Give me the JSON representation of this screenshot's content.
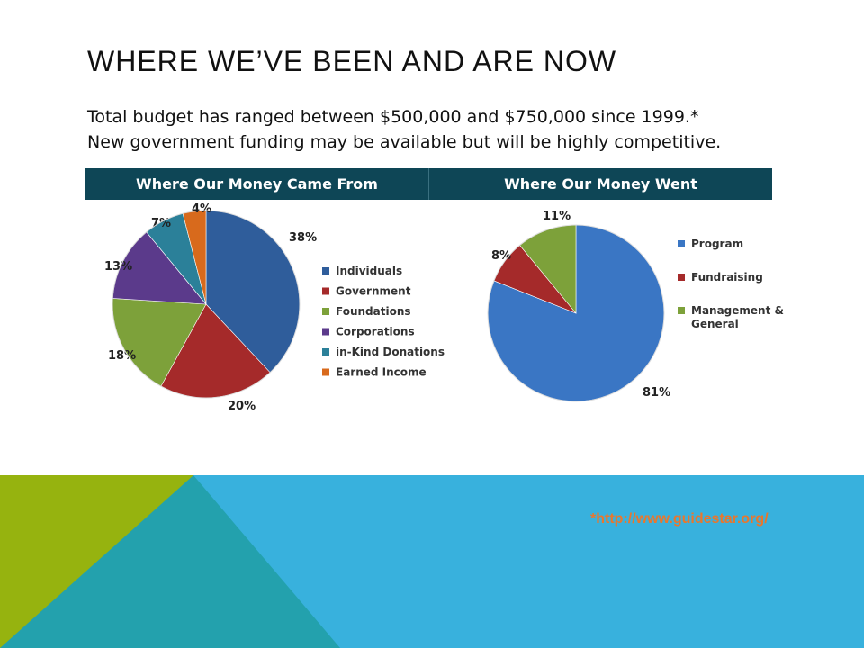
{
  "slide": {
    "title": "WHERE WE’VE BEEN AND ARE NOW",
    "lines": [
      "Total budget has ranged between $500,000 and $750,000 since 1999.*",
      "New government funding may be available but will be highly competitive."
    ],
    "footnote_link": "*http://www.guidestar.org/"
  },
  "header": {
    "left": "Where Our Money Came From",
    "right": "Where Our Money Went"
  },
  "colors": {
    "header_bg": "#0e4656",
    "footer_blue": "#38b1dd",
    "footer_teal": "#23a1ad",
    "footer_green": "#96b30f",
    "link": "#e8772e"
  },
  "chart_data": [
    {
      "type": "pie",
      "title": "Where Our Money Came From",
      "legend_position": "right",
      "slices": [
        {
          "label": "Individuals",
          "value": 38,
          "value_label": "38%",
          "color": "#2f5d9b"
        },
        {
          "label": "Government",
          "value": 20,
          "value_label": "20%",
          "color": "#a52a2a"
        },
        {
          "label": "Foundations",
          "value": 18,
          "value_label": "18%",
          "color": "#7da13a"
        },
        {
          "label": "Corporations",
          "value": 13,
          "value_label": "13%",
          "color": "#5b3a8b"
        },
        {
          "label": "in-Kind Donations",
          "value": 7,
          "value_label": "7%",
          "color": "#2b8099"
        },
        {
          "label": "Earned Income",
          "value": 4,
          "value_label": "4%",
          "color": "#d86a1c"
        }
      ]
    },
    {
      "type": "pie",
      "title": "Where Our Money Went",
      "legend_position": "right",
      "slices": [
        {
          "label": "Program",
          "value": 81,
          "value_label": "81%",
          "color": "#3a76c4"
        },
        {
          "label": "Fundraising",
          "value": 8,
          "value_label": "8%",
          "color": "#a52a2a"
        },
        {
          "label": "Management & General",
          "value": 11,
          "value_label": "11%",
          "color": "#7da13a"
        }
      ]
    }
  ]
}
